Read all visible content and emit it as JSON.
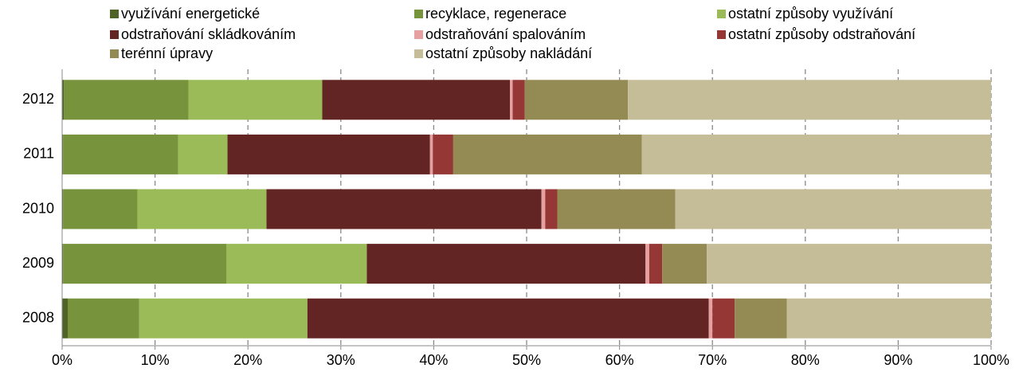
{
  "chart_data": {
    "type": "stacked-barh",
    "categories": [
      "2012",
      "2011",
      "2010",
      "2009",
      "2008"
    ],
    "series": [
      {
        "name": "využívání energetické",
        "color": "#4f6228",
        "values": [
          0.2,
          0.1,
          0.1,
          0.1,
          0.6
        ]
      },
      {
        "name": "recyklace, regenerace",
        "color": "#77933c",
        "values": [
          13.4,
          12.4,
          8.0,
          17.6,
          7.7
        ]
      },
      {
        "name": "ostatní způsoby využívání",
        "color": "#9bbb59",
        "values": [
          14.4,
          5.3,
          13.9,
          15.1,
          18.1
        ]
      },
      {
        "name": "odstraňování skládkováním",
        "color": "#632523",
        "values": [
          20.2,
          21.8,
          29.6,
          30.0,
          43.2
        ]
      },
      {
        "name": "odstraňování spalováním",
        "color": "#e6a0a0",
        "values": [
          0.3,
          0.3,
          0.4,
          0.4,
          0.4
        ]
      },
      {
        "name": "ostatní způsoby odstraňování",
        "color": "#953735",
        "values": [
          1.3,
          2.2,
          1.3,
          1.4,
          2.4
        ]
      },
      {
        "name": "terénní úpravy",
        "color": "#948a54",
        "values": [
          11.1,
          20.3,
          12.7,
          4.8,
          5.6
        ]
      },
      {
        "name": "ostatní způsoby nakládání",
        "color": "#c4bd97",
        "values": [
          39.1,
          37.6,
          34.0,
          30.6,
          22.0
        ]
      }
    ],
    "xlim": [
      0,
      100
    ],
    "xticks": [
      {
        "value": 0,
        "label": "0%"
      },
      {
        "value": 10,
        "label": "10%"
      },
      {
        "value": 20,
        "label": "20%"
      },
      {
        "value": 30,
        "label": "30%"
      },
      {
        "value": 40,
        "label": "40%"
      },
      {
        "value": 50,
        "label": "50%"
      },
      {
        "value": 60,
        "label": "60%"
      },
      {
        "value": 70,
        "label": "70%"
      },
      {
        "value": 80,
        "label": "80%"
      },
      {
        "value": 90,
        "label": "90%"
      },
      {
        "value": 100,
        "label": "100%"
      }
    ],
    "grid": true
  }
}
